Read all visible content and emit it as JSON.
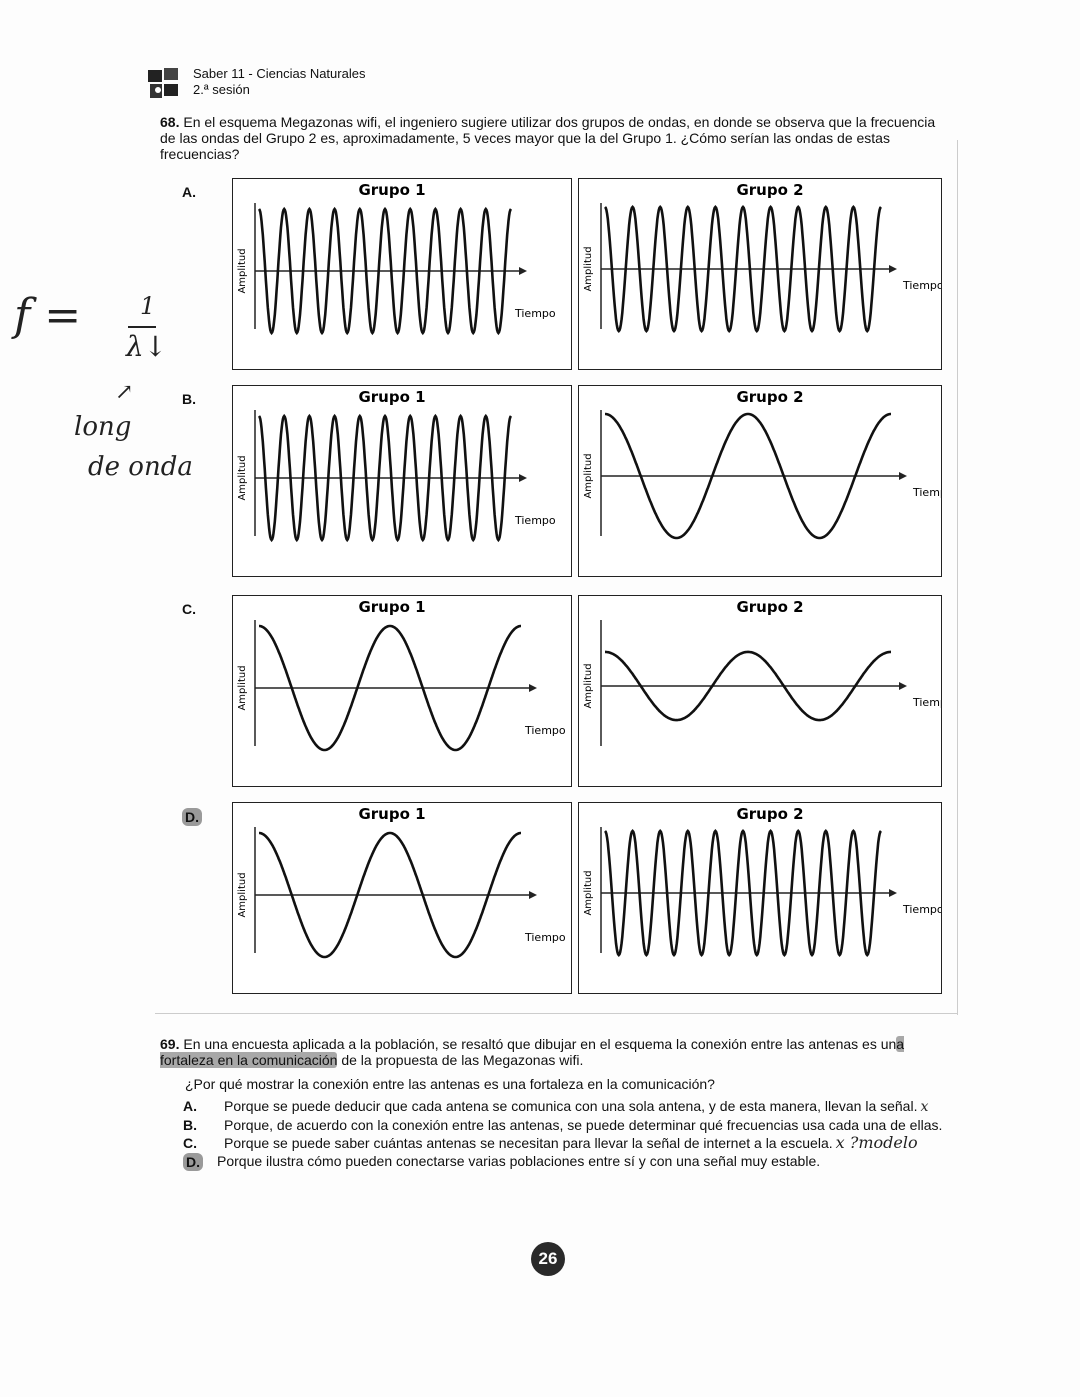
{
  "header": {
    "title": "Saber 11 - Ciencias Naturales",
    "subtitle": "2.ª sesión"
  },
  "q68": {
    "number": "68.",
    "text": "En el esquema Megazonas wifi, el ingeniero sugiere utilizar dos grupos de ondas, en donde se observa que la frecuencia de las ondas del Grupo 2 es, aproximadamente, 5 veces mayor que la del Grupo 1. ¿Cómo serían las ondas de estas frecuencias?",
    "x_axis_label": "Tiempo",
    "y_axis_label": "Amplitud",
    "selected": "D",
    "options": [
      {
        "letter": "A.",
        "panels": [
          {
            "title": "Grupo 1",
            "cycles": 10,
            "amplitude": 1.0
          },
          {
            "title": "Grupo 2",
            "cycles": 10,
            "amplitude": 1.0
          }
        ]
      },
      {
        "letter": "B.",
        "panels": [
          {
            "title": "Grupo 1",
            "cycles": 10,
            "amplitude": 1.0
          },
          {
            "title": "Grupo 2",
            "cycles": 2,
            "amplitude": 1.0
          }
        ]
      },
      {
        "letter": "C.",
        "panels": [
          {
            "title": "Grupo 1",
            "cycles": 2,
            "amplitude": 1.0
          },
          {
            "title": "Grupo 2",
            "cycles": 2,
            "amplitude": 0.55
          }
        ]
      },
      {
        "letter": "D.",
        "panels": [
          {
            "title": "Grupo 1",
            "cycles": 2,
            "amplitude": 1.0
          },
          {
            "title": "Grupo 2",
            "cycles": 10,
            "amplitude": 1.0
          }
        ]
      }
    ]
  },
  "q69": {
    "number": "69.",
    "text_before": "En una encuesta aplicada a la población, se resaltó que dibujar en el esquema la conexión entre las antenas es un",
    "text_highlight": "a fortaleza en la comunicación",
    "text_after": " de la propuesta de las Megazonas wifi.",
    "question": "¿Por qué mostrar la conexión entre las antenas es una fortaleza en la comunicación?",
    "selected": "D",
    "options": [
      {
        "letter": "A.",
        "text": "Porque se puede deducir que cada antena se comunica con una sola antena, y de esta manera, llevan la señal.",
        "note": "x"
      },
      {
        "letter": "B.",
        "text": "Porque, de acuerdo con la conexión entre las antenas, se puede determinar qué frecuencias usa cada una de ellas.",
        "note": ""
      },
      {
        "letter": "C.",
        "text": "Porque se puede saber cuántas antenas se necesitan para llevar la señal de internet a la escuela.",
        "note": "x ?modelo"
      },
      {
        "letter": "D.",
        "text": "Porque ilustra cómo pueden conectarse varias poblaciones entre sí y con una señal muy estable.",
        "note": ""
      }
    ]
  },
  "handwriting": {
    "formula_f": "f =",
    "formula_num": "1",
    "formula_den": "λ↓",
    "arrow": "↗",
    "note1": "long",
    "note2": "de onda"
  },
  "page_number": "26"
}
